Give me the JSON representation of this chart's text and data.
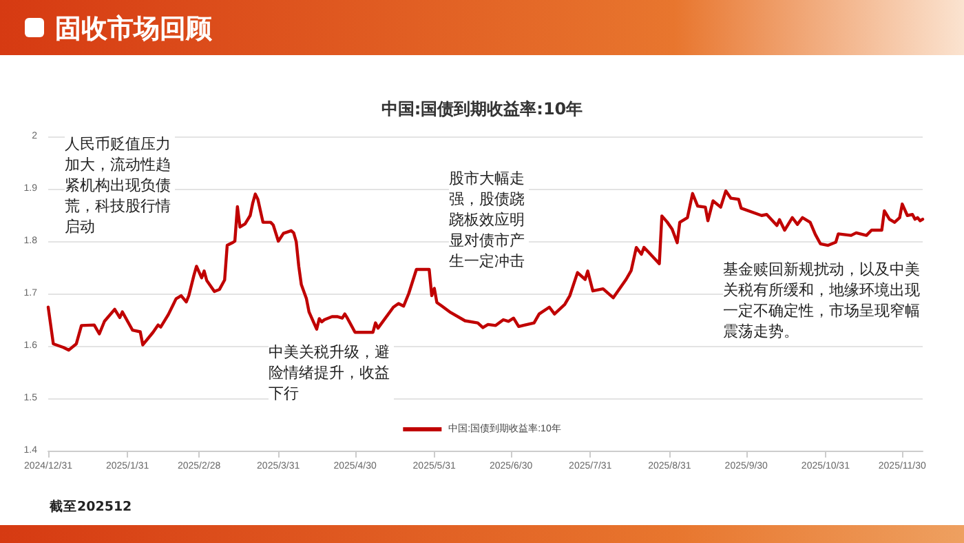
{
  "chart_data": {
    "type": "line",
    "title": "中国:国债到期收益率:10年",
    "x": [
      "2024-12-31",
      "2025-01-02",
      "2025-01-06",
      "2025-01-08",
      "2025-01-11",
      "2025-01-13",
      "2025-01-18",
      "2025-01-20",
      "2025-01-22",
      "2025-01-26",
      "2025-01-28",
      "2025-01-29",
      "2025-02-02",
      "2025-02-05",
      "2025-02-06",
      "2025-02-10",
      "2025-02-12",
      "2025-02-13",
      "2025-02-16",
      "2025-02-18",
      "2025-02-19",
      "2025-02-21",
      "2025-02-23",
      "2025-02-24",
      "2025-02-26",
      "2025-02-27",
      "2025-03-01",
      "2025-03-02",
      "2025-03-03",
      "2025-03-06",
      "2025-03-08",
      "2025-03-10",
      "2025-03-11",
      "2025-03-13",
      "2025-03-14",
      "2025-03-15",
      "2025-03-16",
      "2025-03-18",
      "2025-03-20",
      "2025-03-21",
      "2025-03-22",
      "2025-03-23",
      "2025-03-25",
      "2025-03-28",
      "2025-03-29",
      "2025-03-31",
      "2025-04-02",
      "2025-04-05",
      "2025-04-06",
      "2025-04-07",
      "2025-04-08",
      "2025-04-09",
      "2025-04-11",
      "2025-04-12",
      "2025-04-14",
      "2025-04-15",
      "2025-04-16",
      "2025-04-17",
      "2025-04-18",
      "2025-04-21",
      "2025-04-23",
      "2025-04-25",
      "2025-04-26",
      "2025-04-27",
      "2025-04-30",
      "2025-05-07",
      "2025-05-08",
      "2025-05-09",
      "2025-05-15",
      "2025-05-17",
      "2025-05-19",
      "2025-05-21",
      "2025-05-24",
      "2025-05-29",
      "2025-05-30",
      "2025-05-31",
      "2025-06-01",
      "2025-06-03",
      "2025-06-06",
      "2025-06-12",
      "2025-06-17",
      "2025-06-19",
      "2025-06-21",
      "2025-06-24",
      "2025-06-27",
      "2025-06-29",
      "2025-07-01",
      "2025-07-03",
      "2025-07-09",
      "2025-07-11",
      "2025-07-15",
      "2025-07-17",
      "2025-07-21",
      "2025-07-23",
      "2025-07-26",
      "2025-07-29",
      "2025-07-30",
      "2025-08-01",
      "2025-08-05",
      "2025-08-09",
      "2025-08-14",
      "2025-08-16",
      "2025-08-18",
      "2025-08-20",
      "2025-08-21",
      "2025-08-23",
      "2025-08-27",
      "2025-08-28",
      "2025-08-30",
      "2025-09-01",
      "2025-09-03",
      "2025-09-04",
      "2025-09-07",
      "2025-09-09",
      "2025-09-11",
      "2025-09-14",
      "2025-09-15",
      "2025-09-17",
      "2025-09-20",
      "2025-09-22",
      "2025-09-24",
      "2025-09-27",
      "2025-09-28",
      "2025-10-06",
      "2025-10-08",
      "2025-10-12",
      "2025-10-13",
      "2025-10-15",
      "2025-10-18",
      "2025-10-20",
      "2025-10-22",
      "2025-10-25",
      "2025-10-27",
      "2025-10-29",
      "2025-11-01",
      "2025-11-04",
      "2025-11-05",
      "2025-11-10",
      "2025-11-12",
      "2025-11-16",
      "2025-11-18",
      "2025-11-22",
      "2025-11-23",
      "2025-11-25",
      "2025-11-27",
      "2025-11-29",
      "2025-11-30",
      "2025-12-02",
      "2025-12-04",
      "2025-12-05",
      "2025-12-06",
      "2025-12-07",
      "2025-12-08"
    ],
    "series": [
      {
        "name": "中国:国债到期收益率:10年",
        "color": "#c00000",
        "values": [
          1.674,
          1.604,
          1.597,
          1.592,
          1.604,
          1.639,
          1.64,
          1.623,
          1.647,
          1.67,
          1.654,
          1.665,
          1.63,
          1.627,
          1.602,
          1.626,
          1.64,
          1.636,
          1.66,
          1.68,
          1.69,
          1.696,
          1.684,
          1.696,
          1.735,
          1.752,
          1.73,
          1.743,
          1.725,
          1.704,
          1.708,
          1.726,
          1.792,
          1.797,
          1.8,
          1.866,
          1.827,
          1.833,
          1.849,
          1.873,
          1.89,
          1.88,
          1.836,
          1.836,
          1.831,
          1.8,
          1.815,
          1.82,
          1.816,
          1.799,
          1.752,
          1.717,
          1.69,
          1.665,
          1.643,
          1.632,
          1.652,
          1.646,
          1.65,
          1.656,
          1.656,
          1.653,
          1.661,
          1.653,
          1.626,
          1.626,
          1.644,
          1.634,
          1.674,
          1.681,
          1.676,
          1.7,
          1.746,
          1.746,
          1.696,
          1.71,
          1.683,
          1.676,
          1.665,
          1.648,
          1.644,
          1.635,
          1.641,
          1.639,
          1.65,
          1.647,
          1.653,
          1.637,
          1.644,
          1.661,
          1.674,
          1.661,
          1.679,
          1.696,
          1.74,
          1.727,
          1.743,
          1.705,
          1.709,
          1.692,
          1.727,
          1.744,
          1.788,
          1.775,
          1.788,
          1.778,
          1.757,
          1.848,
          1.837,
          1.823,
          1.797,
          1.836,
          1.845,
          1.891,
          1.867,
          1.865,
          1.839,
          1.877,
          1.865,
          1.896,
          1.882,
          1.88,
          1.863,
          1.849,
          1.851,
          1.83,
          1.841,
          1.821,
          1.845,
          1.832,
          1.845,
          1.836,
          1.813,
          1.795,
          1.792,
          1.798,
          1.814,
          1.811,
          1.816,
          1.811,
          1.821,
          1.821,
          1.858,
          1.842,
          1.836,
          1.845,
          1.871,
          1.849,
          1.851,
          1.842,
          1.845,
          1.839,
          1.842
        ]
      }
    ],
    "xlim": [
      "2024-12-31",
      "2025-12-08"
    ],
    "xticks": [
      {
        "value": "2024-12-31",
        "label": "2024/12/31"
      },
      {
        "value": "2025-01-31",
        "label": "2025/1/31"
      },
      {
        "value": "2025-02-28",
        "label": "2025/2/28"
      },
      {
        "value": "2025-03-31",
        "label": "2025/3/31"
      },
      {
        "value": "2025-04-30",
        "label": "2025/4/30"
      },
      {
        "value": "2025-05-31",
        "label": "2025/5/31"
      },
      {
        "value": "2025-06-30",
        "label": "2025/6/30"
      },
      {
        "value": "2025-07-31",
        "label": "2025/7/31"
      },
      {
        "value": "2025-08-31",
        "label": "2025/8/31"
      },
      {
        "value": "2025-09-30",
        "label": "2025/9/30"
      },
      {
        "value": "2025-10-31",
        "label": "2025/10/31"
      },
      {
        "value": "2025-11-30",
        "label": "2025/11/30"
      }
    ],
    "ylim": [
      1.4,
      2
    ],
    "yticks": [
      1.4,
      1.5,
      1.6,
      1.7,
      1.8,
      1.9,
      2
    ],
    "grid": "y",
    "legend": "bottom",
    "marker": "none",
    "line_style": "solid",
    "annotations": [
      "固收市场回顾",
      "人民币贬值压力加大，流动性趋紧机构出现负债荒，科技股行情启动",
      "中美关税升级，避险情绪提升，收益下行",
      "股市大幅走强，股债跷跷板效应明显对债市产生一定冲击",
      "基金赎回新规扰动，以及中美关税有所缓和，地缘环境出现一定不确定性，市场呈现窄幅震荡走势。",
      "截至202512"
    ]
  }
}
